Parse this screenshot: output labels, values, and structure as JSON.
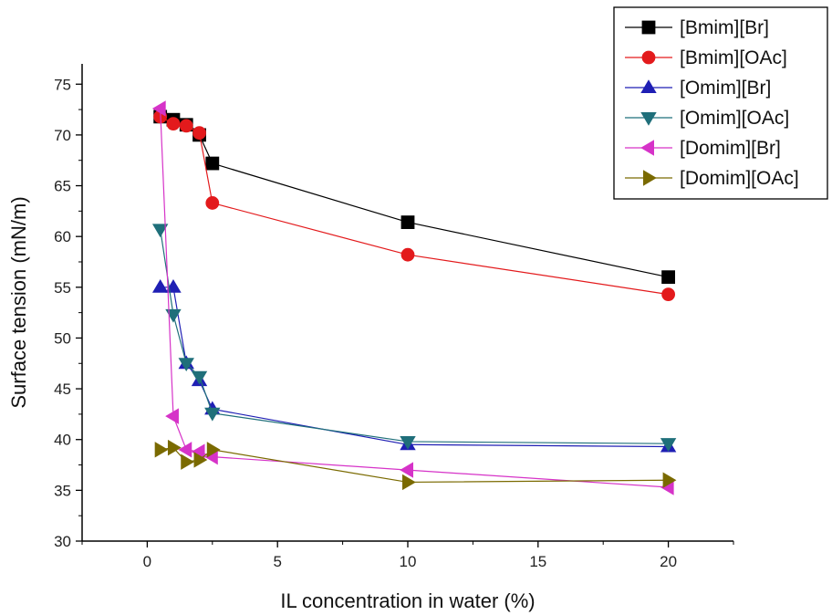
{
  "chart_data": {
    "type": "line",
    "title": "",
    "xlabel": "IL concentration in water (%)",
    "ylabel": "Surface tension (mN/m)",
    "xlim": [
      -2.5,
      22.5
    ],
    "ylim": [
      30,
      77
    ],
    "xticks": [
      0,
      5,
      10,
      15,
      20
    ],
    "yticks": [
      30,
      35,
      40,
      45,
      50,
      55,
      60,
      65,
      70,
      75
    ],
    "grid": false,
    "legend_position": "top-right",
    "series": [
      {
        "name": "[Bmim][Br]",
        "color": "#000000",
        "marker": "square",
        "x": [
          0.5,
          1,
          1.5,
          2,
          2.5,
          10,
          20
        ],
        "y": [
          71.8,
          71.5,
          71.0,
          70.0,
          67.2,
          61.4,
          56.0
        ]
      },
      {
        "name": "[Bmim][OAc]",
        "color": "#e31a1c",
        "marker": "circle",
        "x": [
          0.5,
          1,
          1.5,
          2,
          2.5,
          10,
          20
        ],
        "y": [
          71.8,
          71.1,
          70.9,
          70.2,
          63.3,
          58.2,
          54.3
        ]
      },
      {
        "name": "[Omim][Br]",
        "color": "#1f1fb4",
        "marker": "triangle-up",
        "x": [
          0.5,
          1,
          1.5,
          2,
          2.5,
          10,
          20
        ],
        "y": [
          55.0,
          55.0,
          47.5,
          45.8,
          43.0,
          39.5,
          39.3
        ]
      },
      {
        "name": "[Omim][OAc]",
        "color": "#1f6f7a",
        "marker": "triangle-down",
        "x": [
          0.5,
          1,
          1.5,
          2,
          2.5,
          10,
          20
        ],
        "y": [
          60.7,
          52.3,
          47.5,
          46.2,
          42.6,
          39.8,
          39.6
        ]
      },
      {
        "name": "[Domim][Br]",
        "color": "#d633c8",
        "marker": "triangle-left",
        "x": [
          0.5,
          1,
          1.5,
          2,
          2.5,
          10,
          20
        ],
        "y": [
          72.6,
          42.3,
          39.0,
          38.8,
          38.3,
          37.0,
          35.3
        ]
      },
      {
        "name": "[Domim][OAc]",
        "color": "#7a6a00",
        "marker": "triangle-right",
        "x": [
          0.5,
          1,
          1.5,
          2,
          2.5,
          10,
          20
        ],
        "y": [
          39.0,
          39.2,
          37.8,
          38.0,
          39.0,
          35.8,
          36.0
        ]
      }
    ]
  }
}
